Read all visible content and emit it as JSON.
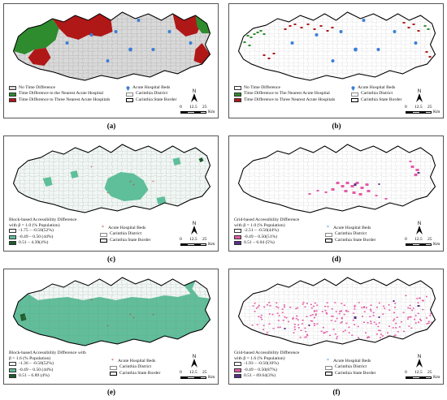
{
  "captions": [
    "(a)",
    "(b)",
    "(c)",
    "(d)",
    "(e)",
    "(f)"
  ],
  "north_label": "N",
  "scale": {
    "ticks": [
      "0",
      "12.5",
      "25"
    ],
    "unit": "Km"
  },
  "colors": {
    "no_diff": "#d9d9d9",
    "nearest": "#2e8b2e",
    "three": "#b01818",
    "light": "#f0f7f4",
    "teal": "#5fbf9a",
    "dark": "#1d5c2a",
    "pink": "#e35aa5",
    "purple": "#5b2e8a",
    "hospital": "#3b7fd6"
  },
  "panel_a": {
    "legend": [
      {
        "label": "No Time Difference",
        "color": "#d9d9d9"
      },
      {
        "label": "Time Difference to the Nearest Acute Hospital",
        "color": "#2e8b2e"
      },
      {
        "label": "Time Difference to Three Nearest Acute Hospitals",
        "color": "#b01818"
      }
    ],
    "legend_right": [
      "Acute Hospital Beds",
      "Carinthia District",
      "Carinthia State Border"
    ]
  },
  "panel_b": {
    "legend": [
      {
        "label": "No Time Difference",
        "color": "#ffffff"
      },
      {
        "label": "Time Difference to The Nearest Acute Hospital",
        "color": "#2e8b2e"
      },
      {
        "label": "Time Difference to Three Nearest Acute Hospitals",
        "color": "#b01818"
      }
    ],
    "legend_right": [
      "Acute Hospital Beds",
      "Carinthia District",
      "Carinthia State Border"
    ]
  },
  "panel_c": {
    "title_line1": "Block-based Accessibility Difference",
    "title_line2": "with β = 1.0 (% Population)",
    "classes": [
      {
        "label": "-1.75 – -0.50(52%)",
        "color": "#f0f7f4"
      },
      {
        "label": "-0.49 – 0.50 (44%)",
        "color": "#5fbf9a"
      },
      {
        "label": "0.51 – 4.39(4%)",
        "color": "#1d5c2a"
      }
    ],
    "legend_right": [
      "Acute Hospital Beds",
      "Carinthia District",
      "Carinthia State Border"
    ]
  },
  "panel_d": {
    "title_line1": "Grid-based Accessibility Difference",
    "title_line2": "with β = 1.0 (% Population)",
    "classes": [
      {
        "label": "-2.51 – -0.50(44%)",
        "color": "#ffffff"
      },
      {
        "label": "-0.49 – 0.50(51%)",
        "color": "#e35aa5"
      },
      {
        "label": "0.51 – 6.04 (5%)",
        "color": "#5b2e8a"
      }
    ],
    "legend_right": [
      "Acute Hospital Beds",
      "Carinthia District",
      "Carinthia State Border"
    ]
  },
  "panel_e": {
    "title_line1": "Block-based Accessibility Difference with",
    "title_line2": "β = 1.6 (% Population)",
    "classes": [
      {
        "label": "-1.36 – -0.50(52%)",
        "color": "#f0f7f4"
      },
      {
        "label": "-0.49 – 0.50 (44%)",
        "color": "#5fbf9a"
      },
      {
        "label": "0.51 – 6.89 (4%)",
        "color": "#1d5c2a"
      }
    ],
    "legend_right": [
      "Acute Hospital Beds",
      "Carinthia District",
      "Carinthia State Border"
    ]
  },
  "panel_f": {
    "title_line1": "Grid-based Accessibility Difference",
    "title_line2": "with β = 1.6 (% Population)",
    "classes": [
      {
        "label": "-1.93 – -0.50(10%)",
        "color": "#ffffff"
      },
      {
        "label": "-0.49 – 0.50(87%)",
        "color": "#e35aa5"
      },
      {
        "label": "0.51 – 69.64(3%)",
        "color": "#5b2e8a"
      }
    ],
    "legend_right": [
      "Acute Hospital Beds",
      "Carinthia District",
      "Carinthia State Border"
    ]
  }
}
